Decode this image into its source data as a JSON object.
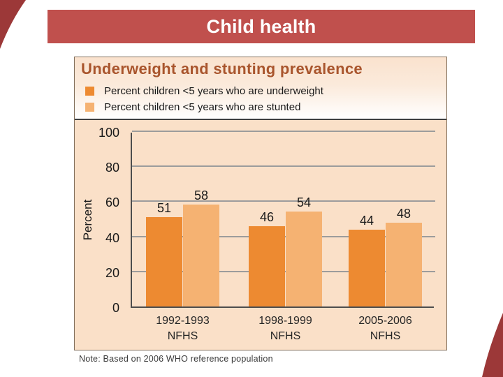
{
  "slide": {
    "title": "Child health"
  },
  "colors": {
    "banner": "#c0504d",
    "corner_accent": "#9c3838",
    "chart_title": "#a9552d",
    "plot_background": "#fae0c8",
    "underweight_bar": "#ed8a31",
    "stunted_bar": "#f5b272",
    "gridline": "#9c9c9c",
    "axis": "#4d4d4d"
  },
  "chart": {
    "note": "Note: Based on 2006 WHO reference population"
  },
  "chart_data": {
    "type": "bar",
    "title": "Underweight and stunting prevalence",
    "categories": [
      [
        "1992-1993",
        "NFHS"
      ],
      [
        "1998-1999",
        "NFHS"
      ],
      [
        "2005-2006",
        "NFHS"
      ]
    ],
    "series": [
      {
        "name": "Percent children <5 years who are underweight",
        "values": [
          51,
          46,
          44
        ],
        "color": "#ed8a31"
      },
      {
        "name": "Percent children <5 years who are stunted",
        "values": [
          58,
          54,
          48
        ],
        "color": "#f5b272"
      }
    ],
    "ylabel": "Percent",
    "xlabel": "",
    "ylim": [
      0,
      100
    ],
    "ytick_step": 20,
    "grid": true,
    "legend_position": "top",
    "data_labels": true,
    "note": "Note: Based on 2006 WHO reference population"
  }
}
